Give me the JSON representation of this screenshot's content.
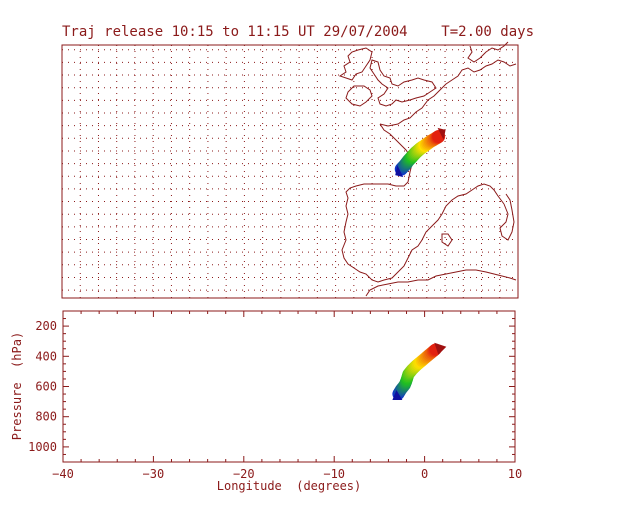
{
  "title": "Traj release 10:15 to 11:15 UT 29/07/2004    T=2.00 days",
  "colors": {
    "frame": "#8b1a1a",
    "grid": "#8b1a1a",
    "coast": "#8b1a1a",
    "trajectory_low": "#1030d0",
    "trajectory_mid": "#20c020",
    "trajectory_high": "#ffe000",
    "trajectory_top": "#e01010"
  },
  "chart_data": [
    {
      "type": "scatter",
      "panel": "map",
      "title": "Traj release 10:15 to 11:15 UT 29/07/2004    T=2.00 days",
      "xlim": [
        -40,
        10
      ],
      "ylim": [
        30,
        62
      ],
      "grid": true,
      "series": [
        {
          "x": [
            -2.8,
            -2.4,
            -2.0,
            -1.6,
            -1.2,
            -0.7,
            -0.2,
            0.4,
            1.0,
            1.4
          ],
          "y": [
            46.3,
            46.8,
            47.4,
            47.9,
            48.4,
            48.9,
            49.3,
            49.8,
            50.2,
            50.5
          ]
        }
      ]
    },
    {
      "type": "scatter",
      "panel": "vertical",
      "xlabel": "Longitude  (degrees)",
      "ylabel": "Pressure  (hPa)",
      "xlim": [
        -40,
        10
      ],
      "ylim": [
        1100,
        100
      ],
      "xticks": [
        -40,
        -30,
        -20,
        -10,
        0,
        10
      ],
      "yticks": [
        200,
        400,
        600,
        800,
        1000
      ],
      "xtick_labels": [
        "−40",
        "−30",
        "−20",
        "−10",
        "0",
        "10"
      ],
      "ytick_labels": [
        "200",
        "400",
        "600",
        "800",
        "1000"
      ],
      "series": [
        {
          "x": [
            -2.9,
            -2.6,
            -2.2,
            -2.0,
            -1.8,
            -1.4,
            -0.9,
            -0.3,
            0.3,
            0.9,
            1.3
          ],
          "y": [
            650,
            620,
            590,
            560,
            520,
            490,
            460,
            430,
            400,
            370,
            350
          ]
        }
      ]
    }
  ]
}
